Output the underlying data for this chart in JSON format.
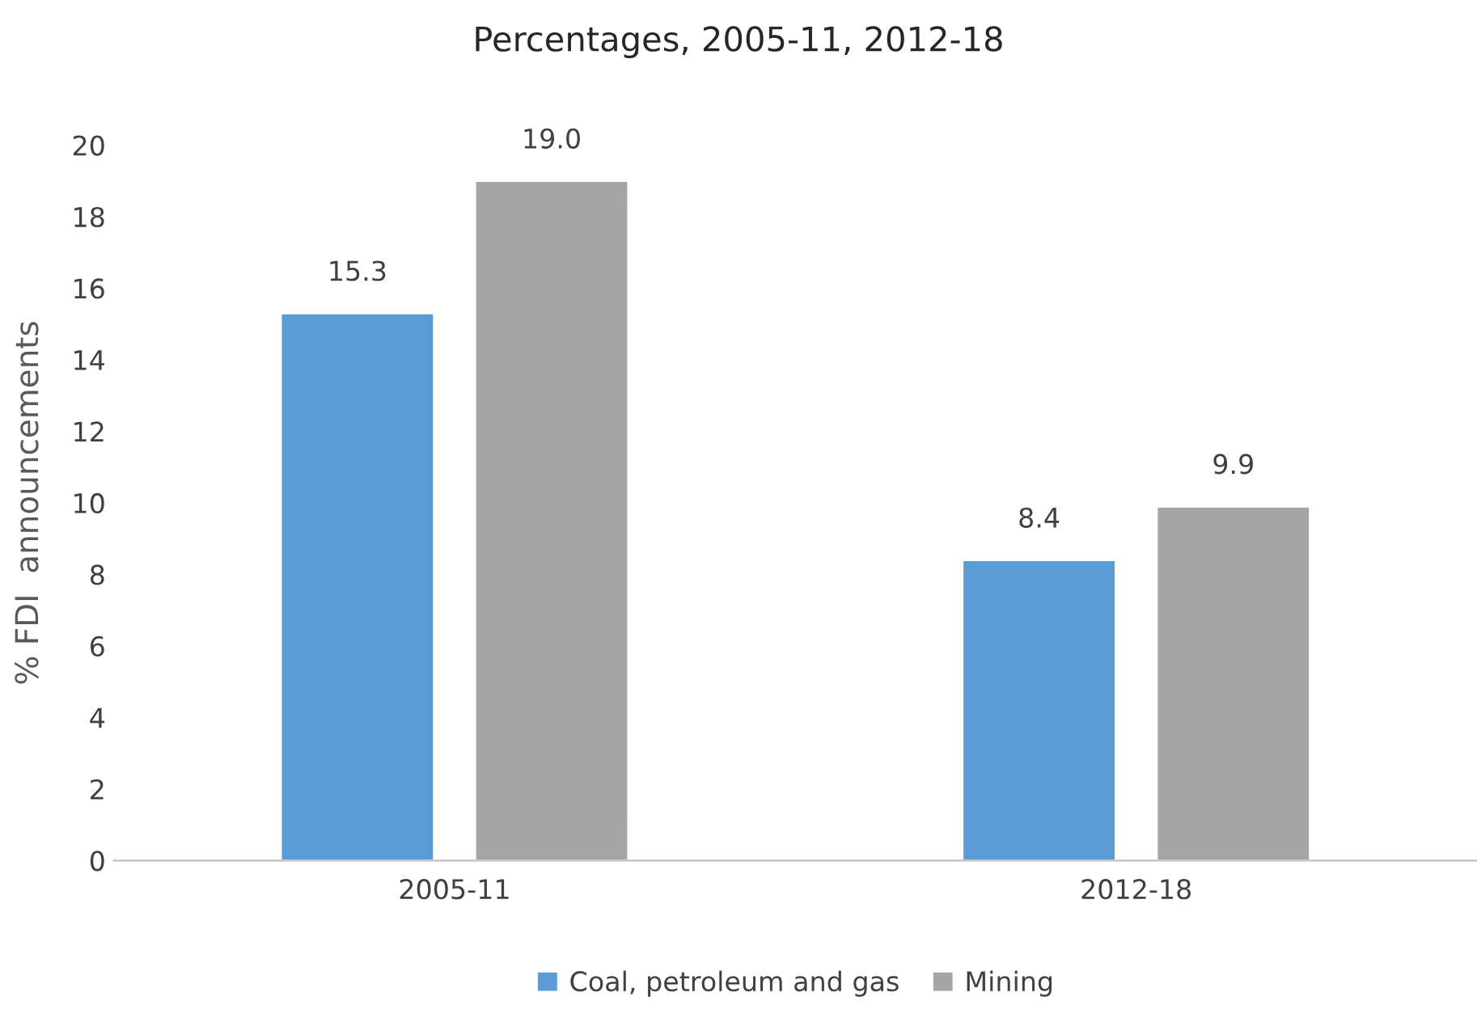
{
  "chart_data": {
    "type": "bar",
    "title": "Percentages, 2005-11, 2012-18",
    "ylabel": "% FDI  announcements",
    "categories": [
      "2005-11",
      "2012-18"
    ],
    "series": [
      {
        "name": "Coal, petroleum and gas",
        "color": "#5b9bd5",
        "values": [
          15.3,
          8.4
        ],
        "value_labels": [
          "15.3",
          "8.4"
        ]
      },
      {
        "name": "Mining",
        "color": "#a5a5a5",
        "values": [
          19.0,
          9.9
        ],
        "value_labels": [
          "19.0",
          "9.9"
        ]
      }
    ],
    "ylim": [
      0,
      20
    ],
    "yticks": [
      0,
      2,
      4,
      6,
      8,
      10,
      12,
      14,
      16,
      18,
      20
    ],
    "grid": false,
    "legend": "bottom"
  }
}
